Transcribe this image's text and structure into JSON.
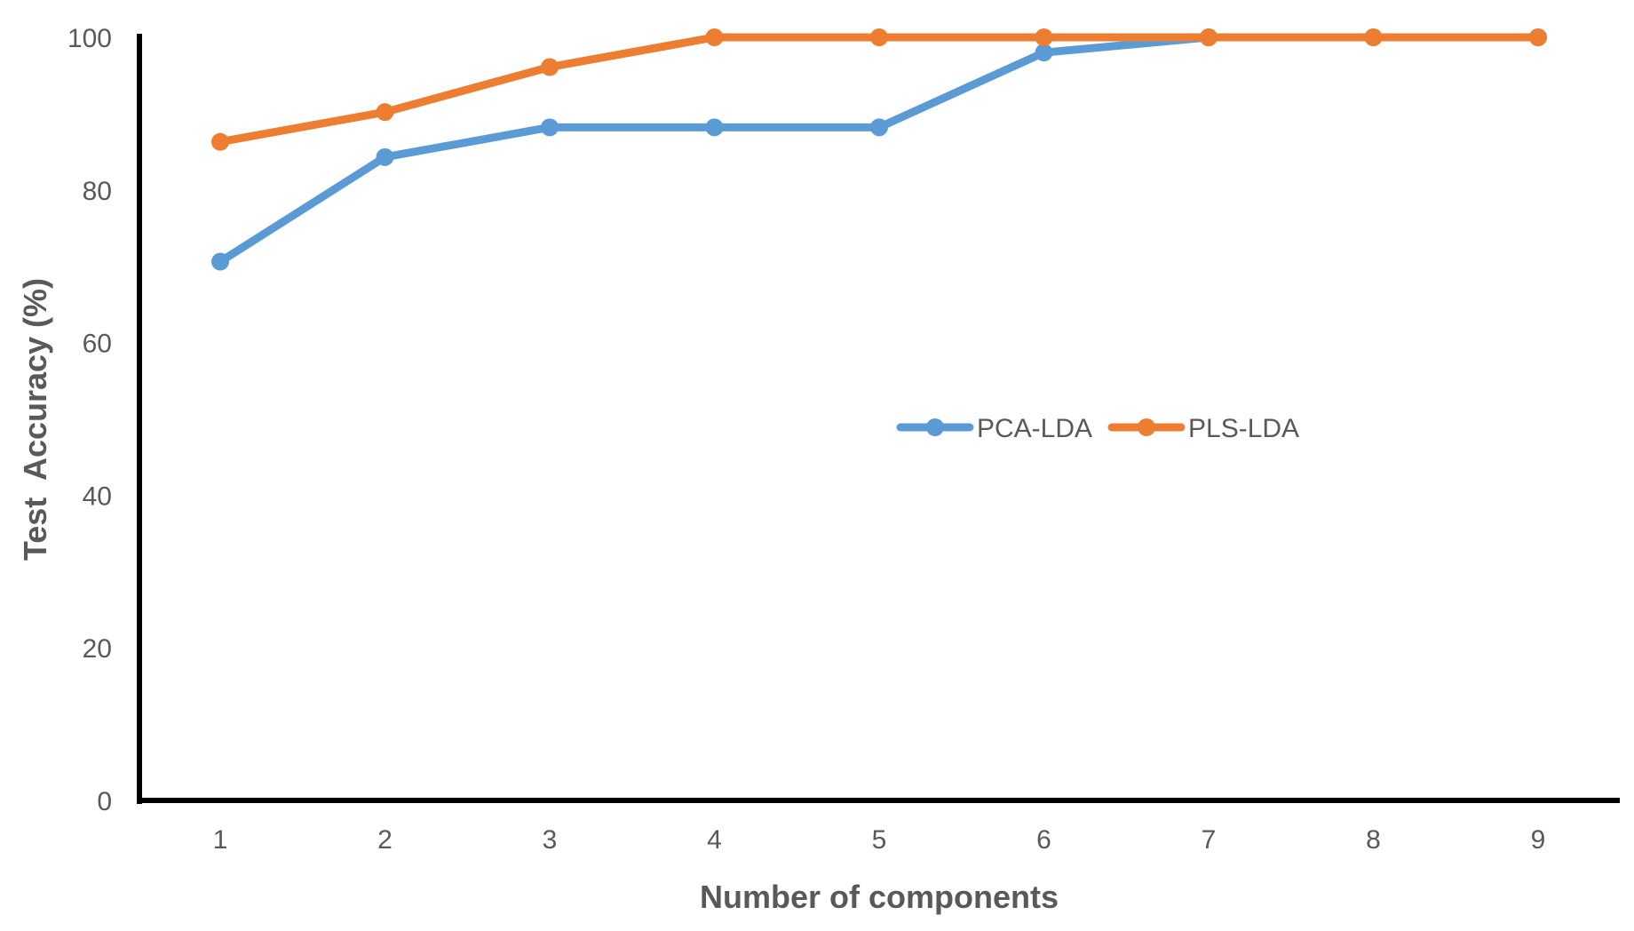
{
  "chart_data": {
    "type": "line",
    "title": "",
    "xlabel": "Number of components",
    "ylabel": "Test  Accuracy (%)",
    "x": [
      1,
      2,
      3,
      4,
      5,
      6,
      7,
      8,
      9
    ],
    "series": [
      {
        "name": "PCA-LDA",
        "color": "#5B9BD5",
        "values": [
          70.6,
          84.3,
          88.2,
          88.2,
          88.2,
          98.0,
          100,
          100,
          100
        ]
      },
      {
        "name": "PLS-LDA",
        "color": "#ED7D31",
        "values": [
          86.3,
          90.2,
          96.1,
          100,
          100,
          100,
          100,
          100,
          100
        ]
      }
    ],
    "ylim": [
      0,
      100
    ],
    "yticks": [
      0,
      20,
      40,
      60,
      80,
      100
    ],
    "xticks": [
      "1",
      "2",
      "3",
      "4",
      "5",
      "6",
      "7",
      "8",
      "9"
    ],
    "grid": false,
    "legend_position": "center-right",
    "axis_color": "#000000"
  }
}
